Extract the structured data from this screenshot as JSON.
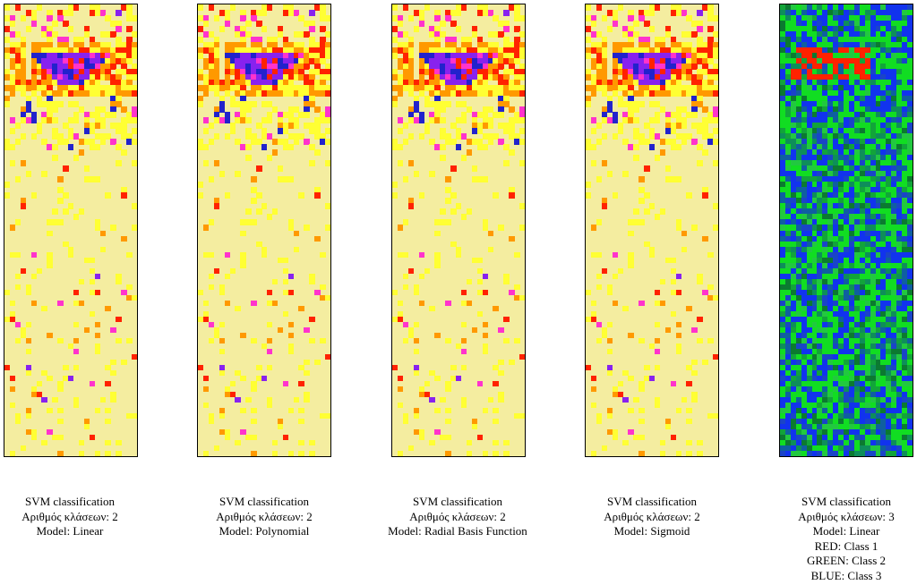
{
  "panels": [
    {
      "id": "linear",
      "palette": "heat",
      "caption": {
        "line1": "SVM classification",
        "line2": "Αριθμός κλάσεων: 2",
        "line3": "Model: Linear"
      }
    },
    {
      "id": "polynomial",
      "palette": "heat",
      "caption": {
        "line1": "SVM classification",
        "line2": "Αριθμός κλάσεων: 2",
        "line3": "Model: Polynomial"
      }
    },
    {
      "id": "rbf",
      "palette": "heat",
      "caption": {
        "line1": "SVM classification",
        "line2": "Αριθμός κλάσεων: 2",
        "line3": "Model: Radial Basis Function"
      }
    },
    {
      "id": "sigmoid",
      "palette": "heat",
      "caption": {
        "line1": "SVM classification",
        "line2": "Αριθμός κλάσεων: 2",
        "line3": "Model: Sigmoid"
      }
    },
    {
      "id": "linear-3class",
      "palette": "rgb",
      "caption": {
        "line1": "SVM classification",
        "line2": "Αριθμός κλάσεων: 3",
        "line3": "Model: Linear",
        "line4": "RED: Class 1",
        "line5": "GREEN: Class 2",
        "line6": "BLUE: Class 3"
      }
    }
  ],
  "colors": {
    "background": "#ffffff",
    "heat_base": "#f4eda0",
    "heat_yellow": "#ffff33",
    "heat_orange": "#ff9900",
    "heat_red": "#ff2200",
    "heat_magenta": "#ff33cc",
    "heat_purple": "#8822ee",
    "heat_blue": "#2222cc",
    "class1_red": "#ff2200",
    "class2_green": "#11dd22",
    "class3_blue": "#1133ee"
  }
}
